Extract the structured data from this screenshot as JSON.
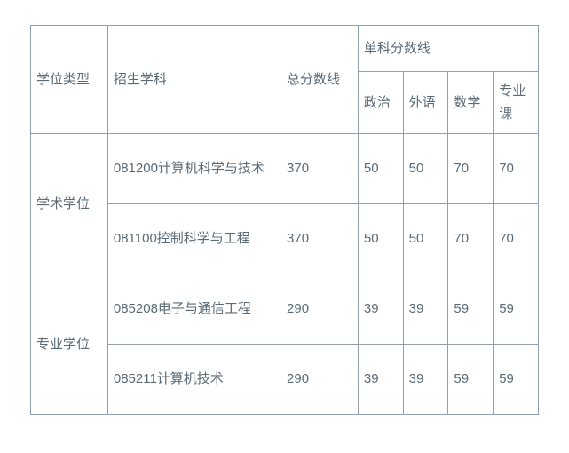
{
  "table": {
    "headers": {
      "degree_type": "学位类型",
      "discipline": "招生学科",
      "total_score": "总分数线",
      "subject_scores": "单科分数线",
      "politics": "政治",
      "foreign": "外语",
      "math": "数学",
      "major": "专业课"
    },
    "groups": [
      {
        "degree_type": "学术学位",
        "rows": [
          {
            "discipline": "081200计算机科学与技术",
            "total": "370",
            "politics": "50",
            "foreign": "50",
            "math": "70",
            "major": "70"
          },
          {
            "discipline": "081100控制科学与工程",
            "total": "370",
            "politics": "50",
            "foreign": "50",
            "math": "70",
            "major": "70"
          }
        ]
      },
      {
        "degree_type": "专业学位",
        "rows": [
          {
            "discipline": "085208电子与通信工程",
            "total": "290",
            "politics": "39",
            "foreign": "39",
            "math": "59",
            "major": "59"
          },
          {
            "discipline": "085211计算机技术",
            "total": "290",
            "politics": "39",
            "foreign": "39",
            "math": "59",
            "major": "59"
          }
        ]
      }
    ],
    "style": {
      "border_color": "#90a0ad",
      "text_color": "#5a6a76",
      "background_color": "#ffffff",
      "font_size": 15,
      "line_height": 1.7
    }
  }
}
